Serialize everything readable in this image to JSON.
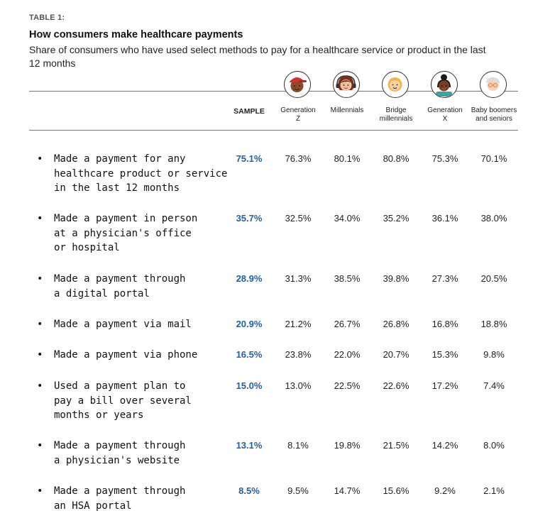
{
  "header": {
    "table_label": "TABLE 1:",
    "title": "How consumers make healthcare payments",
    "subtitle": "Share of consumers who have used select methods to pay for a healthcare service or product in the last 12 months"
  },
  "chart_data": {
    "type": "table",
    "columns": [
      {
        "key": "sample",
        "label": "SAMPLE"
      },
      {
        "key": "genz",
        "label": "Generation Z",
        "icon": "gen-z-avatar-icon"
      },
      {
        "key": "millennials",
        "label": "Millennials",
        "icon": "millennial-avatar-icon"
      },
      {
        "key": "bridge",
        "label": "Bridge millennials",
        "icon": "bridge-millennial-avatar-icon"
      },
      {
        "key": "genx",
        "label": "Generation X",
        "icon": "gen-x-avatar-icon"
      },
      {
        "key": "boomers",
        "label": "Baby boomers and seniors",
        "icon": "baby-boomer-avatar-icon"
      }
    ],
    "rows": [
      {
        "label": "Made a payment for any healthcare product or service in the last 12 months",
        "values": [
          "75.1%",
          "76.3%",
          "80.1%",
          "80.8%",
          "75.3%",
          "70.1%"
        ]
      },
      {
        "label": "Made a payment in person at a physician's office or hospital",
        "values": [
          "35.7%",
          "32.5%",
          "34.0%",
          "35.2%",
          "36.1%",
          "38.0%"
        ]
      },
      {
        "label": "Made a payment through a digital portal",
        "values": [
          "28.9%",
          "31.3%",
          "38.5%",
          "39.8%",
          "27.3%",
          "20.5%"
        ]
      },
      {
        "label": "Made a payment via mail",
        "values": [
          "20.9%",
          "21.2%",
          "26.7%",
          "26.8%",
          "16.8%",
          "18.8%"
        ]
      },
      {
        "label": "Made a payment via phone",
        "values": [
          "16.5%",
          "23.8%",
          "22.0%",
          "20.7%",
          "15.3%",
          "9.8%"
        ]
      },
      {
        "label": "Used a payment plan to pay a bill over several months or years",
        "values": [
          "15.0%",
          "13.0%",
          "22.5%",
          "22.6%",
          "17.2%",
          "7.4%"
        ]
      },
      {
        "label": "Made a payment through a physician's website",
        "values": [
          "13.1%",
          "8.1%",
          "19.8%",
          "21.5%",
          "14.2%",
          "8.0%"
        ]
      },
      {
        "label": "Made a payment through an HSA portal",
        "values": [
          "8.5%",
          "9.5%",
          "14.7%",
          "15.6%",
          "9.2%",
          "2.1%"
        ]
      }
    ],
    "colors": {
      "sample": "#1f5fa8",
      "text": "#1a1a1a",
      "rule": "#777777"
    }
  }
}
